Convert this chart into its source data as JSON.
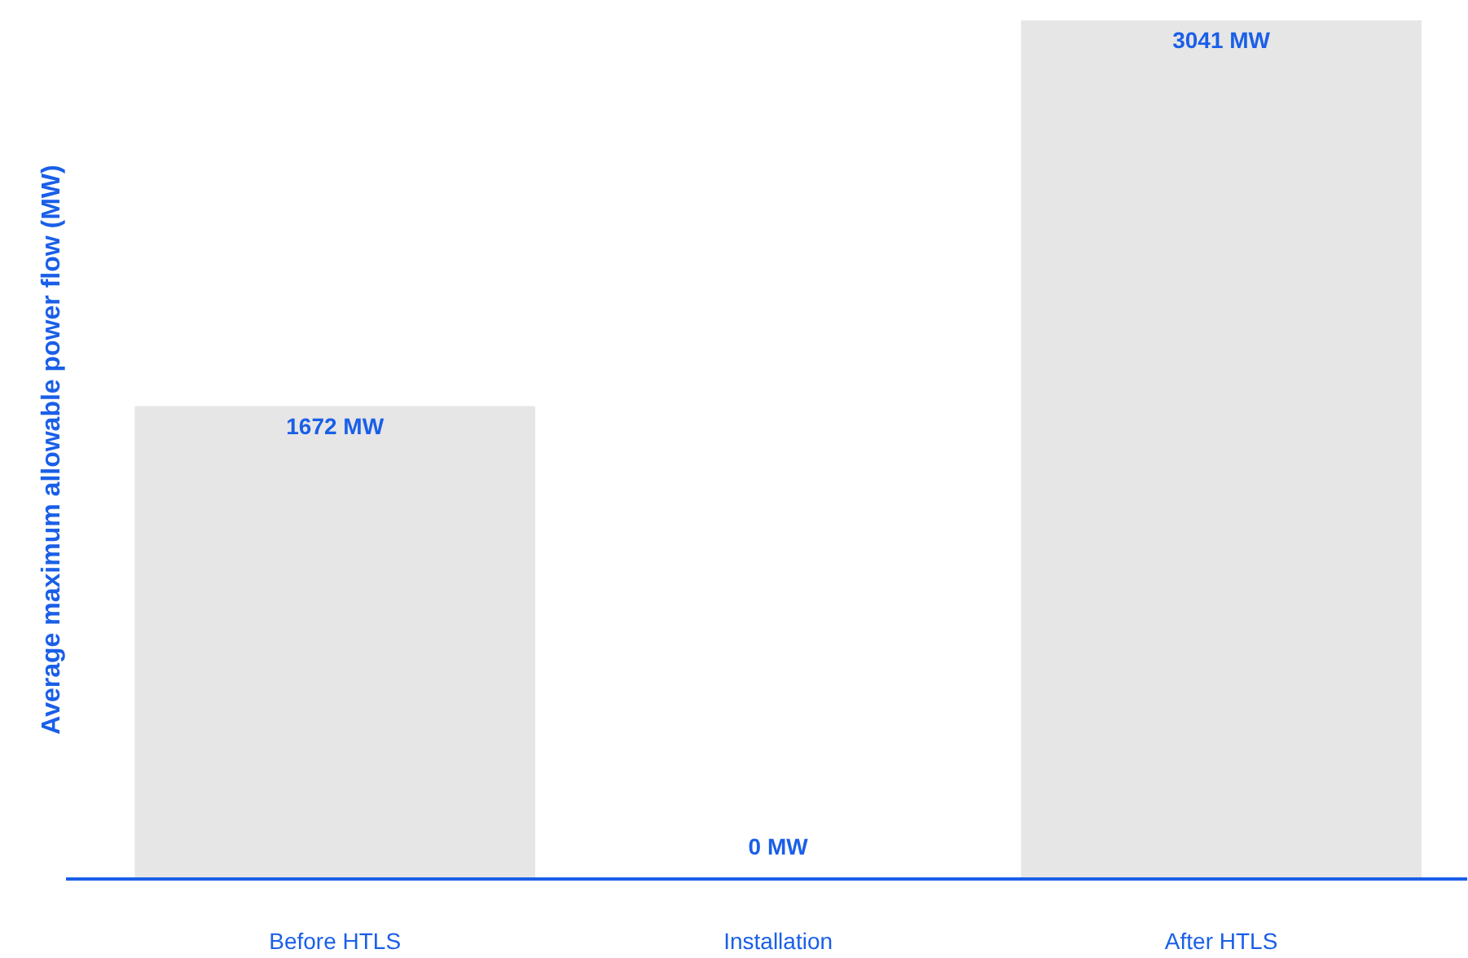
{
  "chart_data": {
    "type": "bar",
    "ylabel": "Average maximum allowable power flow (MW)",
    "categories": [
      "Before HTLS",
      "Installation",
      "After HTLS"
    ],
    "values": [
      1672,
      0,
      3041
    ],
    "value_labels": [
      "1672 MW",
      "0 MW",
      "3041 MW"
    ],
    "color": "#e6e6e6",
    "grid": false
  }
}
